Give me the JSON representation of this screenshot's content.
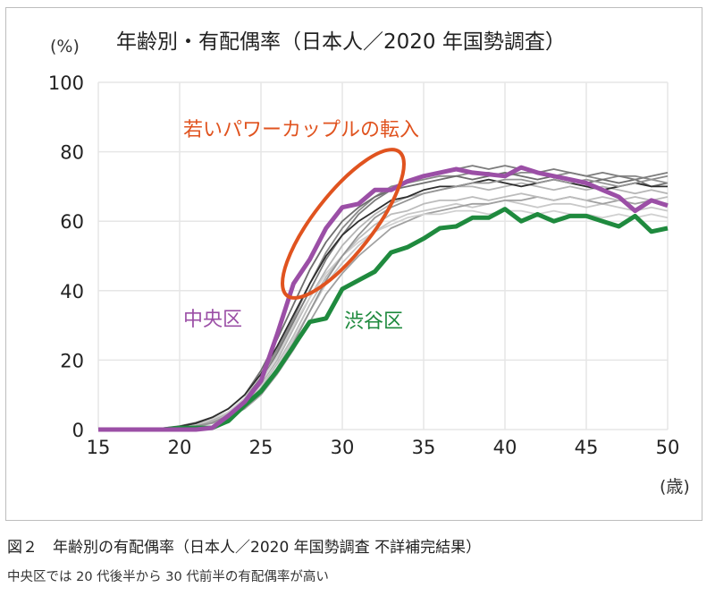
{
  "chart_data": {
    "type": "line",
    "title": "年齢別・有配偶率（日本人／2020 年国勢調査）",
    "ylabel": "(%)",
    "xlabel": "(歳)",
    "xlim": [
      15,
      50
    ],
    "ylim": [
      0,
      100
    ],
    "xticks": [
      15,
      20,
      25,
      30,
      35,
      40,
      45,
      50
    ],
    "yticks": [
      0,
      20,
      40,
      60,
      80,
      100
    ],
    "grid": true,
    "x": [
      15,
      16,
      17,
      18,
      19,
      20,
      21,
      22,
      23,
      24,
      25,
      26,
      27,
      28,
      29,
      30,
      31,
      32,
      33,
      34,
      35,
      36,
      37,
      38,
      39,
      40,
      41,
      42,
      43,
      44,
      45,
      46,
      47,
      48,
      49,
      50
    ],
    "series": [
      {
        "name": "中央区",
        "color": "#9b4fa6",
        "highlight": true,
        "values": [
          0,
          0,
          0,
          0,
          0,
          0,
          0,
          0.5,
          4,
          8,
          14,
          27.5,
          42,
          49,
          58,
          64,
          65,
          69,
          69,
          71.5,
          73,
          74,
          75,
          74,
          73.5,
          73,
          75.5,
          74,
          73,
          72,
          71,
          69,
          67,
          63,
          66,
          64.5
        ]
      },
      {
        "name": "渋谷区",
        "color": "#1f8a3e",
        "highlight": true,
        "values": [
          0,
          0,
          0,
          0,
          0,
          0.5,
          0.5,
          0.5,
          2.5,
          7,
          11,
          17,
          24,
          31,
          32,
          40.5,
          43,
          45.5,
          51,
          52.5,
          55,
          58,
          58.5,
          61,
          61,
          63.5,
          60,
          62,
          60,
          61.5,
          61.5,
          60,
          58.5,
          61.5,
          57,
          58
        ]
      },
      {
        "color": "#8a8a8a",
        "values": [
          0,
          0,
          0,
          0,
          0.3,
          0.8,
          1.5,
          3,
          5,
          9,
          15,
          23,
          32,
          42,
          51,
          58,
          63,
          67,
          70,
          71,
          72,
          73,
          73,
          74,
          74,
          73,
          74,
          74,
          73,
          74,
          73,
          72,
          73,
          73,
          72,
          73
        ]
      },
      {
        "color": "#b5b5b5",
        "values": [
          0,
          0,
          0,
          0,
          0.2,
          0.6,
          1.2,
          2.5,
          4.5,
          8,
          13,
          20,
          29,
          38,
          46,
          53,
          58,
          62,
          65,
          67,
          68,
          69,
          70,
          70,
          69,
          70,
          71,
          70,
          69,
          70,
          69,
          70,
          69,
          68,
          69,
          68
        ]
      },
      {
        "color": "#c8c8c8",
        "values": [
          0,
          0,
          0,
          0.1,
          0.2,
          0.5,
          1,
          2,
          4,
          7,
          11,
          18,
          26,
          34,
          42,
          48,
          53,
          57,
          60,
          62,
          63,
          64,
          65,
          64,
          65,
          66,
          65,
          64,
          65,
          65,
          64,
          65,
          64,
          63,
          64,
          63
        ]
      },
      {
        "color": "#6e6e6e",
        "values": [
          0,
          0,
          0,
          0.1,
          0.4,
          1,
          2,
          3.5,
          6,
          10,
          17,
          26,
          36,
          46,
          54,
          60,
          64,
          67,
          69,
          70,
          71,
          72,
          73,
          72,
          73,
          74,
          73,
          72,
          73,
          72,
          71,
          72,
          71,
          72,
          70,
          71
        ]
      },
      {
        "color": "#a0a0a0",
        "values": [
          0,
          0,
          0,
          0,
          0.2,
          0.4,
          0.9,
          1.8,
          3.5,
          6,
          10,
          16,
          23,
          31,
          39,
          45,
          50,
          54,
          58,
          60,
          62,
          63,
          64,
          65,
          65,
          66,
          66,
          67,
          66,
          67,
          66,
          65,
          66,
          65,
          66,
          65
        ]
      },
      {
        "color": "#7c7c7c",
        "values": [
          0,
          0,
          0,
          0,
          0.3,
          0.7,
          1.4,
          2.8,
          5,
          8.5,
          14,
          22,
          31,
          40,
          49,
          56,
          62,
          66,
          69,
          71,
          73,
          74,
          75,
          76,
          75,
          76,
          75,
          74,
          75,
          74,
          73,
          74,
          73,
          72,
          73,
          74
        ]
      },
      {
        "color": "#d0d0d0",
        "values": [
          0,
          0,
          0,
          0,
          0.3,
          0.8,
          1.5,
          3,
          5,
          9,
          14,
          21,
          30,
          38,
          45,
          50,
          54,
          57,
          59,
          61,
          62,
          62,
          63,
          63,
          62,
          63,
          63,
          62,
          63,
          62,
          62,
          61,
          62,
          61,
          62,
          61
        ]
      },
      {
        "color": "#2e2e2e",
        "values": [
          0,
          0,
          0,
          0,
          0.3,
          0.9,
          1.8,
          3.5,
          6,
          10,
          16,
          24,
          33,
          42,
          50,
          56,
          60,
          63,
          66,
          67,
          69,
          70,
          70,
          71,
          72,
          71,
          70,
          71,
          72,
          71,
          70,
          69,
          70,
          71,
          70,
          70
        ]
      },
      {
        "color": "#bcbcbc",
        "values": [
          0,
          0,
          0,
          0,
          0.2,
          0.6,
          1.2,
          2.4,
          4.4,
          7.5,
          12,
          19,
          27,
          36,
          44,
          50,
          55,
          59,
          62,
          63,
          65,
          66,
          66,
          67,
          66,
          67,
          68,
          67,
          66,
          67,
          66,
          67,
          66,
          67,
          66,
          67
        ]
      },
      {
        "color": "#959595",
        "values": [
          0,
          0,
          0,
          0,
          0.2,
          0.5,
          1,
          2,
          4,
          7,
          11,
          17,
          25,
          34,
          43,
          50,
          56,
          61,
          64,
          66,
          68,
          69,
          70,
          71,
          71,
          72,
          72,
          71,
          72,
          71,
          72,
          71,
          70,
          71,
          72,
          71
        ]
      }
    ],
    "annotations": [
      {
        "text": "若いパワーカップルの転入",
        "color": "#e0531f"
      },
      {
        "text": "中央区",
        "color": "#9b4fa6"
      },
      {
        "text": "渋谷区",
        "color": "#1f8a3e"
      }
    ]
  },
  "caption": {
    "figure": "図２　年齢別の有配偶率（日本人／2020 年国勢調査 不詳補完結果）",
    "note": "中央区では 20 代後半から 30 代前半の有配偶率が高い"
  }
}
